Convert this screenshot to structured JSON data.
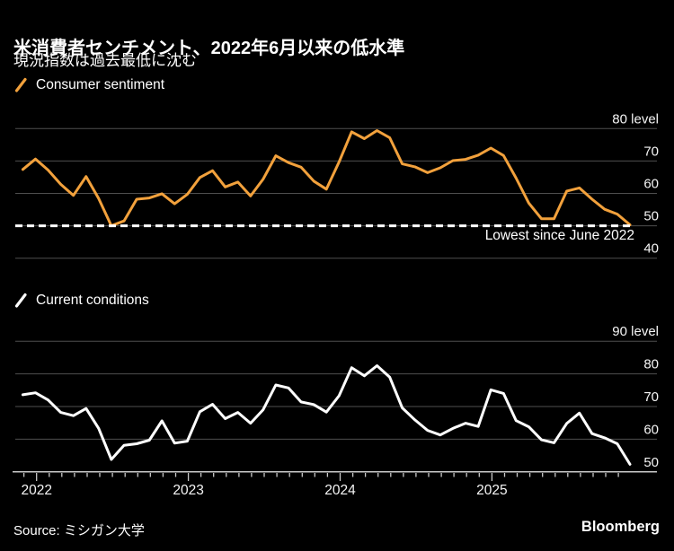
{
  "header": {
    "title": "米消費者センチメント、2022年6月以来の低水準",
    "subtitle": "現況指数は過去最低に沈む"
  },
  "top_chart": {
    "y_axis_labels": [
      "80 level",
      "70",
      "60",
      "50",
      "40"
    ]
  },
  "bottom_chart": {
    "y_axis_labels": [
      "90 level",
      "80",
      "70",
      "60",
      "50"
    ]
  },
  "x_axis": {
    "year_labels": [
      "2022",
      "2023",
      "2024",
      "2025"
    ]
  },
  "footer": {
    "source": "Source: ミシガン大学",
    "brand": "Bloomberg"
  },
  "colors": {
    "background": "#000000",
    "grid": "#4f4f4f",
    "axis": "#c8c8c8",
    "text": "#f5f5f5",
    "accent_orange": "#F2A13C",
    "accent_white": "#FFFFFF",
    "reference_line": "#FFFFFF"
  },
  "chart_data": [
    {
      "type": "line",
      "title": "米消費者センチメント、2022年6月以来の低水準",
      "subtitle": "現況指数は過去最低に沈む",
      "xlabel": "",
      "ylabel": "level",
      "ylim": [
        40,
        80
      ],
      "yticks": [
        40,
        50,
        60,
        70,
        80
      ],
      "grid": true,
      "legend_position": "top-left",
      "annotation": "Lowest since June 2022",
      "reference_line": {
        "value": 50,
        "style": "dashed"
      },
      "x": [
        "2021-11",
        "2021-12",
        "2022-01",
        "2022-02",
        "2022-03",
        "2022-04",
        "2022-05",
        "2022-06",
        "2022-07",
        "2022-08",
        "2022-09",
        "2022-10",
        "2022-11",
        "2022-12",
        "2023-01",
        "2023-02",
        "2023-03",
        "2023-04",
        "2023-05",
        "2023-06",
        "2023-07",
        "2023-08",
        "2023-09",
        "2023-10",
        "2023-11",
        "2023-12",
        "2024-01",
        "2024-02",
        "2024-03",
        "2024-04",
        "2024-05",
        "2024-06",
        "2024-07",
        "2024-08",
        "2024-09",
        "2024-10",
        "2024-11",
        "2024-12",
        "2025-01",
        "2025-02",
        "2025-03",
        "2025-04",
        "2025-05",
        "2025-06",
        "2025-07",
        "2025-08",
        "2025-09",
        "2025-10",
        "2025-11"
      ],
      "series": [
        {
          "name": "Consumer sentiment",
          "color": "#F2A13C",
          "values": [
            67.4,
            70.6,
            67.2,
            62.8,
            59.4,
            65.2,
            58.4,
            50.0,
            51.5,
            58.2,
            58.6,
            59.9,
            56.8,
            59.7,
            64.9,
            67.0,
            62.0,
            63.5,
            59.2,
            64.4,
            71.6,
            69.5,
            68.1,
            63.8,
            61.3,
            69.7,
            79.0,
            76.9,
            79.4,
            77.2,
            69.1,
            68.2,
            66.4,
            67.9,
            70.1,
            70.5,
            71.8,
            74.0,
            71.7,
            64.7,
            57.0,
            52.2,
            52.2,
            60.7,
            61.7,
            58.2,
            55.1,
            53.6,
            50.3
          ]
        }
      ]
    },
    {
      "type": "line",
      "title": "",
      "xlabel": "",
      "ylabel": "level",
      "ylim": [
        50,
        90
      ],
      "yticks": [
        50,
        60,
        70,
        80,
        90
      ],
      "grid": true,
      "legend_position": "top-left",
      "x": [
        "2021-11",
        "2021-12",
        "2022-01",
        "2022-02",
        "2022-03",
        "2022-04",
        "2022-05",
        "2022-06",
        "2022-07",
        "2022-08",
        "2022-09",
        "2022-10",
        "2022-11",
        "2022-12",
        "2023-01",
        "2023-02",
        "2023-03",
        "2023-04",
        "2023-05",
        "2023-06",
        "2023-07",
        "2023-08",
        "2023-09",
        "2023-10",
        "2023-11",
        "2023-12",
        "2024-01",
        "2024-02",
        "2024-03",
        "2024-04",
        "2024-05",
        "2024-06",
        "2024-07",
        "2024-08",
        "2024-09",
        "2024-10",
        "2024-11",
        "2024-12",
        "2025-01",
        "2025-02",
        "2025-03",
        "2025-04",
        "2025-05",
        "2025-06",
        "2025-07",
        "2025-08",
        "2025-09",
        "2025-10",
        "2025-11"
      ],
      "series": [
        {
          "name": "Current conditions",
          "color": "#FFFFFF",
          "values": [
            73.6,
            74.2,
            72.0,
            68.2,
            67.2,
            69.4,
            63.3,
            53.8,
            58.1,
            58.6,
            59.7,
            65.6,
            58.8,
            59.4,
            68.4,
            70.7,
            66.3,
            68.2,
            64.9,
            69.0,
            76.6,
            75.7,
            71.4,
            70.6,
            68.3,
            73.3,
            81.9,
            79.4,
            82.5,
            79.0,
            69.6,
            65.9,
            62.7,
            61.3,
            63.3,
            64.9,
            63.9,
            75.1,
            74.0,
            65.7,
            63.8,
            59.8,
            58.9,
            64.8,
            68.0,
            61.7,
            60.4,
            58.6,
            52.3
          ]
        }
      ]
    }
  ]
}
